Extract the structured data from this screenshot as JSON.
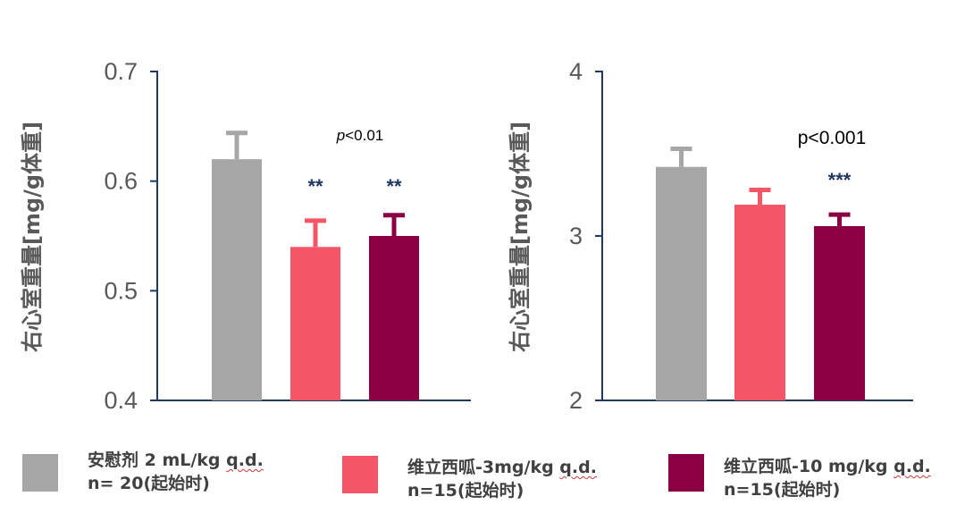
{
  "colors": {
    "placebo": "#a6a6a6",
    "dose_low": "#f55667",
    "dose_high": "#8b0042",
    "axis": "#1f3864",
    "tick_text": "#595959",
    "sig_text": "#1f3864"
  },
  "chart_data": [
    {
      "type": "bar",
      "ylabel": "右心室重量[mg/g体重]",
      "ylim": [
        0.4,
        0.7
      ],
      "yticks": [
        "0.4",
        "0.5",
        "0.6",
        "0.7"
      ],
      "ytick_values": [
        0.4,
        0.5,
        0.6,
        0.7
      ],
      "categories": [
        "安慰剂 2 mL/kg q.d.",
        "维立西呱-3mg/kg q.d.",
        "维立西呱-10 mg/kg q.d."
      ],
      "values": [
        0.62,
        0.54,
        0.55
      ],
      "error": [
        0.024,
        0.024,
        0.019
      ],
      "significance": [
        "",
        "**",
        "**"
      ],
      "annotation": {
        "italic": "p",
        "text": "<0.01"
      }
    },
    {
      "type": "bar",
      "ylabel": "右心室重量[mg/g体重]",
      "ylim": [
        2,
        4
      ],
      "yticks": [
        "2",
        "3",
        "4"
      ],
      "ytick_values": [
        2,
        3,
        4
      ],
      "categories": [
        "安慰剂 2 mL/kg q.d.",
        "维立西呱-3mg/kg q.d.",
        "维立西呱-10 mg/kg q.d."
      ],
      "values": [
        3.42,
        3.19,
        3.06
      ],
      "error": [
        0.11,
        0.09,
        0.07
      ],
      "significance": [
        "",
        "",
        "***"
      ],
      "annotation": {
        "italic": "",
        "text": "p<0.001"
      }
    }
  ],
  "legend": [
    {
      "name_main": "安慰剂 2 mL/kg ",
      "name_dose": "q.d.",
      "count": "n= 20(起始时)",
      "color_key": "placebo"
    },
    {
      "name_main": "维立西呱-3mg/kg ",
      "name_dose": "q.d.",
      "count": "n=15(起始时)",
      "color_key": "dose_low"
    },
    {
      "name_main": "维立西呱-10 mg/kg ",
      "name_dose": "q.d.",
      "count": "n=15(起始时)",
      "color_key": "dose_high"
    }
  ]
}
